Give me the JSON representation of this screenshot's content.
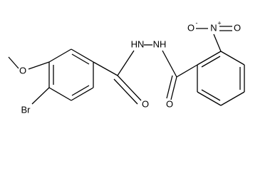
{
  "atoms": {
    "methoxy_o": "O",
    "bromo": "Br",
    "left_carbonyl_o": "O",
    "left_nh": "HN",
    "right_nh": "NH",
    "right_carbonyl_o": "O",
    "nitro_n": "N",
    "nitro_n_charge": "+",
    "nitro_o_minus": "O",
    "nitro_o_minus_charge": "-",
    "nitro_o": "O"
  }
}
